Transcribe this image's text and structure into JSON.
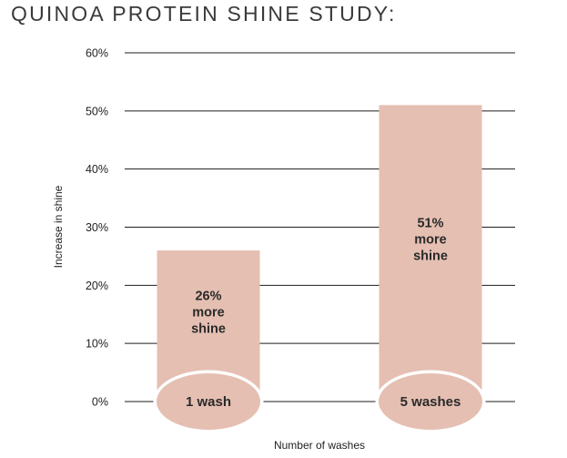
{
  "title": "QUINOA PROTEIN SHINE STUDY:",
  "chart_data": {
    "type": "bar",
    "title": "QUINOA PROTEIN SHINE STUDY:",
    "categories": [
      "1 wash",
      "5 washes"
    ],
    "values": [
      26,
      51
    ],
    "bar_labels": [
      [
        "26%",
        "more",
        "shine"
      ],
      [
        "51%",
        "more",
        "shine"
      ]
    ],
    "ylabel": "Increase in shine",
    "xlabel": "Number of washes",
    "ylim": [
      0,
      60
    ],
    "yticks": [
      0,
      10,
      20,
      30,
      40,
      50,
      60
    ],
    "ytick_labels": [
      "0%",
      "10%",
      "20%",
      "30%",
      "40%",
      "50%",
      "60%"
    ],
    "grid": true,
    "legend": "none",
    "bar_color": "#e5bfb2",
    "grid_color": "#1d1d1d"
  }
}
